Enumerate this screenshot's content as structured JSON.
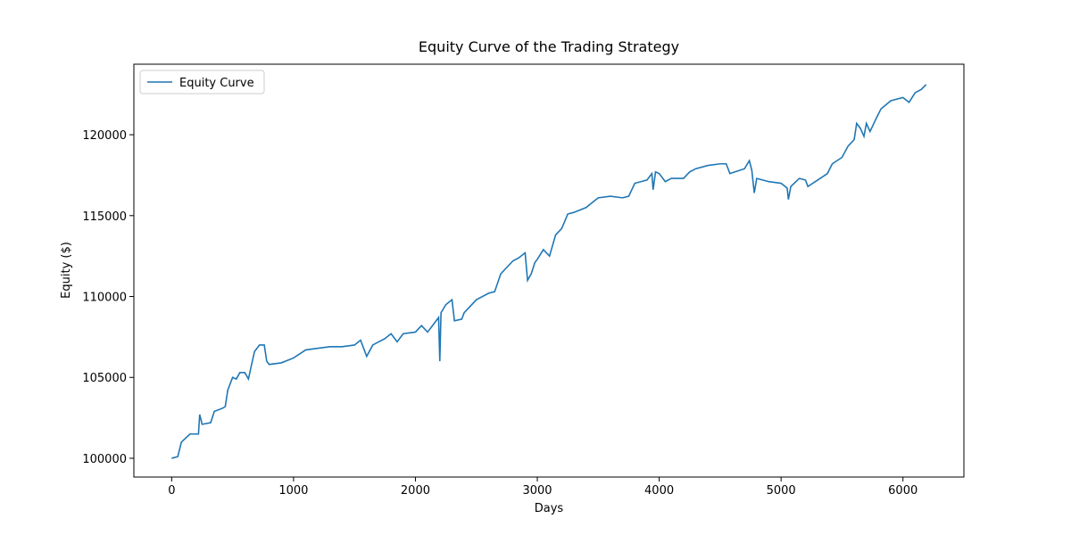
{
  "chart_data": {
    "type": "line",
    "title": "Equity Curve of the Trading Strategy",
    "x_label": "Days",
    "y_label": "Equity ($)",
    "x": [
      0,
      50,
      80,
      150,
      220,
      230,
      250,
      320,
      350,
      420,
      440,
      460,
      500,
      530,
      560,
      600,
      630,
      650,
      680,
      700,
      720,
      760,
      780,
      800,
      900,
      1000,
      1100,
      1200,
      1300,
      1400,
      1500,
      1550,
      1600,
      1650,
      1700,
      1750,
      1800,
      1850,
      1900,
      2000,
      2050,
      2100,
      2150,
      2190,
      2200,
      2210,
      2250,
      2300,
      2320,
      2380,
      2400,
      2500,
      2600,
      2650,
      2700,
      2750,
      2800,
      2850,
      2900,
      2920,
      2950,
      2980,
      3000,
      3050,
      3100,
      3150,
      3200,
      3250,
      3300,
      3400,
      3450,
      3500,
      3600,
      3700,
      3750,
      3800,
      3850,
      3900,
      3940,
      3950,
      3970,
      4000,
      4050,
      4100,
      4200,
      4250,
      4300,
      4400,
      4500,
      4550,
      4580,
      4700,
      4740,
      4760,
      4780,
      4800,
      4900,
      5000,
      5050,
      5060,
      5080,
      5150,
      5200,
      5220,
      5300,
      5380,
      5420,
      5500,
      5550,
      5600,
      5620,
      5650,
      5680,
      5700,
      5730,
      5780,
      5820,
      5900,
      6000,
      6050,
      6100,
      6150,
      6190
    ],
    "series": [
      {
        "name": "Equity Curve",
        "color": "#1f77b4",
        "values": [
          100000,
          100100,
          101000,
          101500,
          101500,
          102700,
          102100,
          102200,
          102900,
          103100,
          103200,
          104200,
          105000,
          104900,
          105300,
          105300,
          104900,
          105600,
          106600,
          106800,
          107000,
          107000,
          106000,
          105800,
          105900,
          106200,
          106700,
          106800,
          106900,
          106900,
          107000,
          107300,
          106300,
          107000,
          107200,
          107400,
          107700,
          107200,
          107700,
          107800,
          108200,
          107800,
          108300,
          108700,
          106000,
          109000,
          109500,
          109800,
          108500,
          108600,
          109000,
          109800,
          110200,
          110300,
          111400,
          111800,
          112200,
          112400,
          112700,
          111000,
          111400,
          112100,
          112300,
          112900,
          112500,
          113800,
          114200,
          115100,
          115200,
          115500,
          115800,
          116100,
          116200,
          116100,
          116200,
          117000,
          117100,
          117200,
          117600,
          116600,
          117700,
          117600,
          117100,
          117300,
          117300,
          117700,
          117900,
          118100,
          118200,
          118200,
          117600,
          117900,
          118400,
          117800,
          116400,
          117300,
          117100,
          117000,
          116700,
          116000,
          116800,
          117300,
          117200,
          116800,
          117200,
          117600,
          118200,
          118600,
          119300,
          119700,
          120700,
          120400,
          119900,
          120700,
          120200,
          121000,
          121600,
          122100,
          122300,
          122000,
          122600,
          122800,
          123100
        ]
      }
    ],
    "xlim": [
      -310,
      6500
    ],
    "ylim": [
      98840,
      124360
    ],
    "xticks": [
      0,
      1000,
      2000,
      3000,
      4000,
      5000,
      6000
    ],
    "yticks": [
      100000,
      105000,
      110000,
      115000,
      120000
    ],
    "legend": "upper left"
  }
}
